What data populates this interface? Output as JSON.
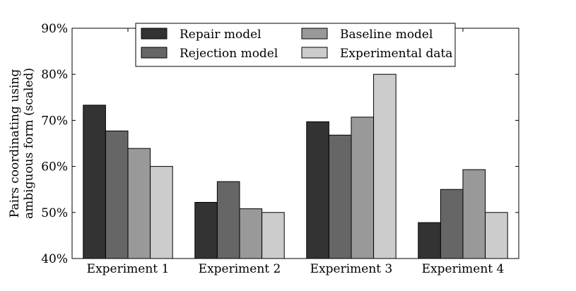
{
  "chart_data": {
    "type": "bar",
    "categories": [
      "Experiment 1",
      "Experiment 2",
      "Experiment 3",
      "Experiment 4"
    ],
    "series": [
      {
        "name": "Repair model",
        "values": [
          73.3,
          52.2,
          69.7,
          47.8
        ],
        "color": "#333333"
      },
      {
        "name": "Rejection model",
        "values": [
          67.7,
          56.7,
          66.8,
          55.0
        ],
        "color": "#666666"
      },
      {
        "name": "Baseline model",
        "values": [
          63.9,
          50.8,
          70.7,
          59.3
        ],
        "color": "#999999"
      },
      {
        "name": "Experimental data",
        "values": [
          60.0,
          50.0,
          80.0,
          50.0
        ],
        "color": "#cccccc"
      }
    ],
    "ylabel_lines": [
      "Pairs coordinating using",
      "ambiguous form (scaled)"
    ],
    "xlabel": "",
    "title": "",
    "ylim": [
      40,
      90
    ],
    "yticks": [
      40,
      50,
      60,
      70,
      80,
      90
    ],
    "ytick_labels": [
      "40%",
      "50%",
      "60%",
      "70%",
      "80%",
      "90%"
    ],
    "legend_position": "top-center",
    "grid": false
  }
}
